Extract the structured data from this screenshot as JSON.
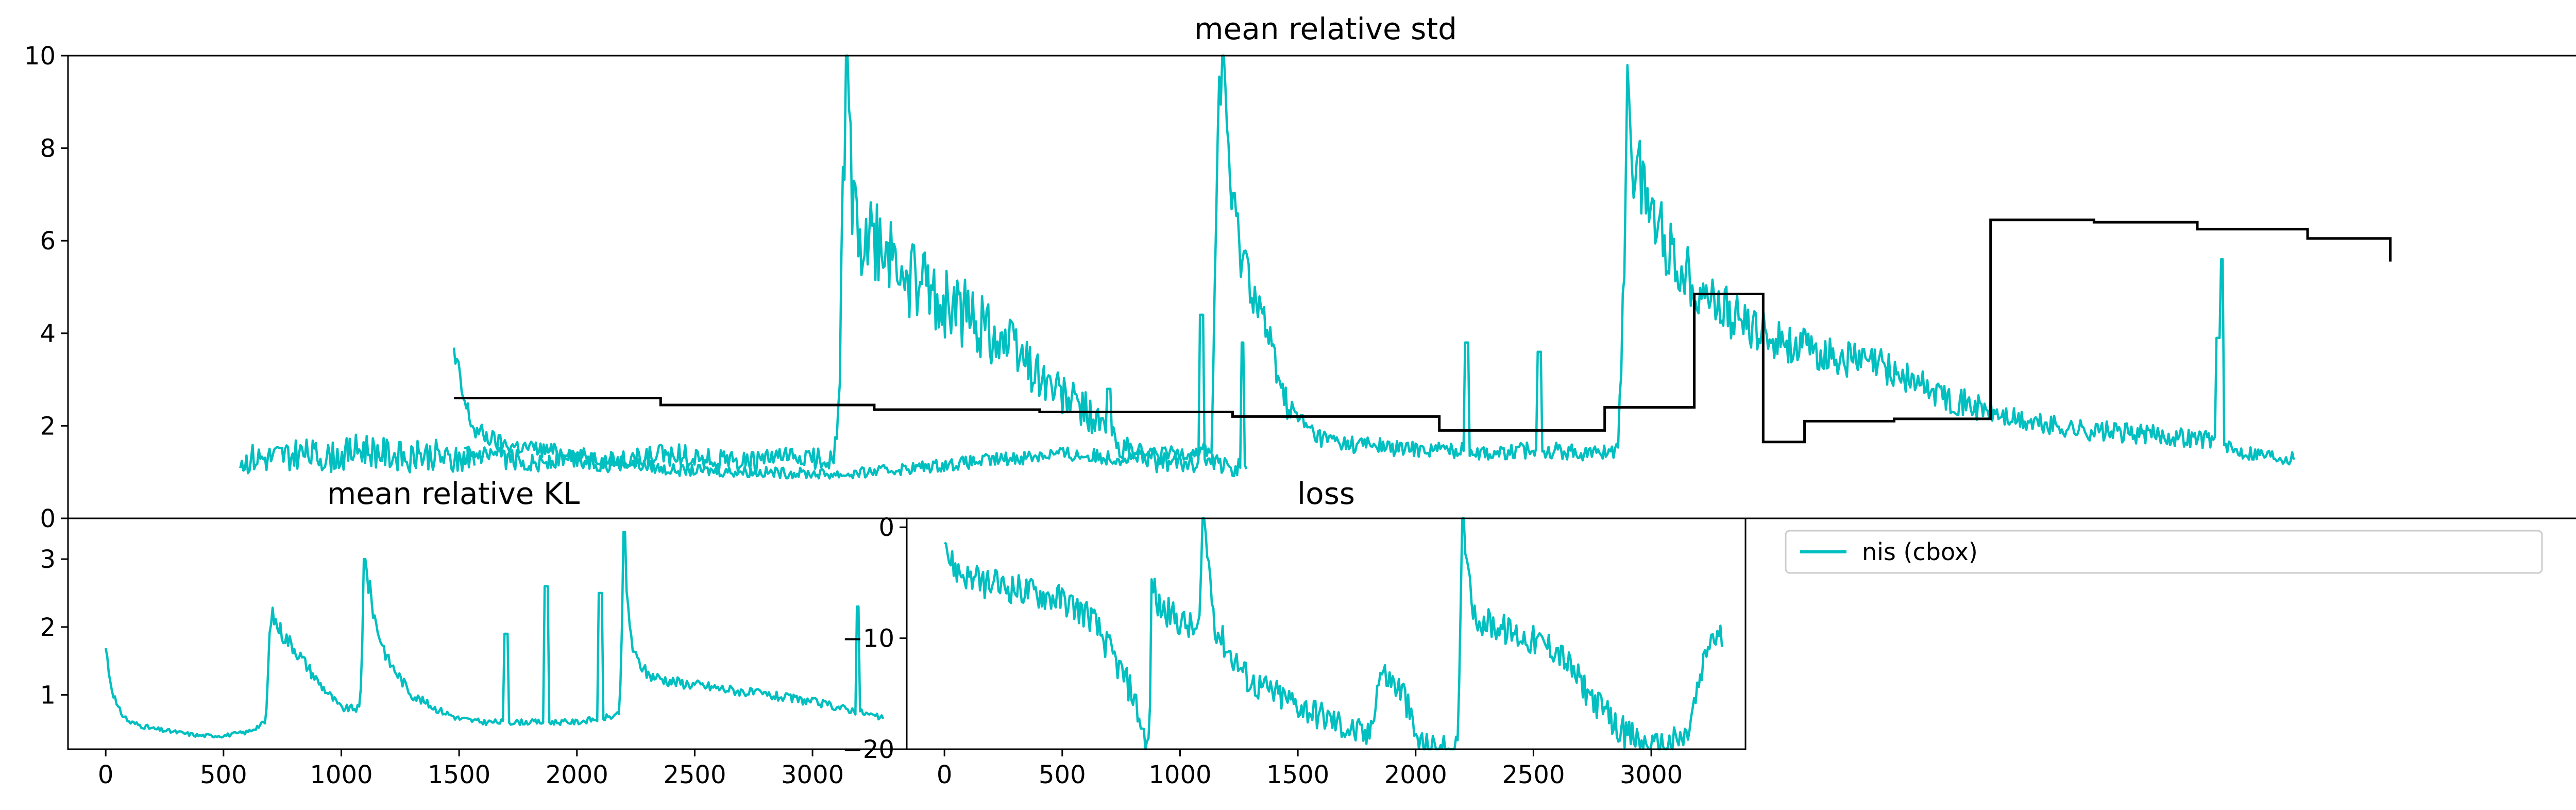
{
  "figure": {
    "background": "#ffffff"
  },
  "colors": {
    "series_nis": "#00bfc0",
    "reference": "#000000"
  },
  "chart_data": [
    {
      "id": "top",
      "type": "line",
      "title": "mean relative std",
      "xlim": [
        -230,
        3420
      ],
      "ylim": [
        0,
        10
      ],
      "yticks": [
        0,
        2,
        4,
        6,
        8,
        10
      ],
      "ytick_labels": [
        "0",
        "2",
        "4",
        "6",
        "8",
        "10"
      ],
      "xticks": [],
      "grid": false,
      "series": [
        {
          "key": "nis",
          "color": "#00bfc0",
          "style": "noisy",
          "noise": 0.12,
          "spikes": [
            [
              1800,
              3.8
            ],
            [
              1905,
              3.6
            ],
            [
              2050,
              4.1
            ],
            [
              2195,
              3.6
            ],
            [
              2260,
              3.7
            ],
            [
              2890,
              3.9
            ],
            [
              2895,
              5.6
            ]
          ],
          "x": [
            330,
            335,
            345,
            360,
            400,
            500,
            640,
            900,
            1140,
            1200,
            1300,
            1430,
            1440,
            1445,
            1452,
            1458,
            1465,
            1480,
            1520,
            1540,
            1560,
            1580,
            1600,
            1630,
            1660,
            1700,
            1760,
            1850,
            1900,
            1980,
            2020,
            2030,
            2034,
            2040,
            2060,
            2100,
            2150,
            2200,
            2250,
            2300,
            2400,
            2500,
            2600,
            2700,
            2800,
            2890,
            2900,
            2950,
            3000
          ],
          "y": [
            3.5,
            3.2,
            2.5,
            1.9,
            1.6,
            1.4,
            1.05,
            0.95,
            1.3,
            1.4,
            1.3,
            1.5,
            9.5,
            10,
            8.5,
            7.0,
            6.2,
            5.5,
            3.5,
            2.4,
            2.1,
            1.8,
            1.7,
            1.6,
            1.6,
            1.5,
            1.5,
            1.4,
            1.5,
            1.4,
            1.5,
            6.5,
            10,
            7.8,
            7.0,
            5.6,
            4.8,
            4.2,
            3.9,
            3.6,
            3.3,
            2.6,
            2.1,
            1.9,
            1.8,
            1.7,
            1.5,
            1.4,
            1.3
          ]
        },
        {
          "key": "nis_b",
          "color": "#00bfc0",
          "style": "noisy",
          "noise": 0.18,
          "spikes": [
            [
              745,
              1.1
            ],
            [
              900,
              1.5
            ],
            [
              1065,
              3.2
            ],
            [
              1095,
              2.9
            ],
            [
              1120,
              2.4
            ],
            [
              1280,
              2.8
            ],
            [
              1415,
              4.4
            ],
            [
              1475,
              3.8
            ]
          ],
          "x": [
            345,
            350,
            355,
            360,
            365,
            380,
            400,
            420,
            450,
            500,
            550,
            600,
            650,
            700,
            750,
            800,
            850,
            880,
            890,
            895,
            900,
            905,
            910,
            920,
            940,
            970,
            1000,
            1050,
            1100,
            1150,
            1200,
            1250,
            1300,
            1330,
            1340,
            1350,
            1360,
            1380,
            1420,
            1460,
            1480
          ],
          "y": [
            1.3,
            1.3,
            1.3,
            1.3,
            1.3,
            1.3,
            1.3,
            1.25,
            1.2,
            1.3,
            1.2,
            1.3,
            1.4,
            1.3,
            1.2,
            1.3,
            1.3,
            1.3,
            2.5,
            8.0,
            10,
            8.0,
            6.5,
            6.0,
            5.8,
            5.5,
            5.0,
            4.6,
            4.2,
            3.6,
            2.8,
            2.3,
            1.5,
            1.4,
            1.3,
            1.2,
            1.2,
            1.2,
            1.2,
            1.1,
            1.2
          ]
        },
        {
          "key": "nis_c",
          "color": "#00bfc0",
          "style": "noisy",
          "noise": 0.25,
          "spikes": [
            [
              1165,
              4.7
            ],
            [
              1255,
              5.3
            ],
            [
              1412,
              4.1
            ]
          ],
          "x": [
            20,
            25,
            35,
            60,
            100,
            150,
            200,
            260,
            300,
            330,
            360
          ],
          "y": [
            1.3,
            1.2,
            1.3,
            1.3,
            1.4,
            1.3,
            1.5,
            1.3,
            1.4,
            1.2,
            1.4
          ]
        },
        {
          "key": "ref",
          "color": "#000000",
          "style": "step",
          "x": [
            330,
            630,
            940,
            1180,
            1460,
            1760,
            2000,
            2130,
            2230,
            2290,
            2420,
            2560,
            2710,
            2860,
            3020,
            3140
          ],
          "y": [
            2.6,
            2.45,
            2.35,
            2.3,
            2.2,
            1.9,
            2.4,
            4.85,
            1.65,
            2.1,
            2.15,
            6.45,
            6.4,
            6.25,
            6.05,
            5.55
          ]
        }
      ]
    },
    {
      "id": "kl",
      "type": "line",
      "title": "mean relative KL",
      "xlim": [
        -160,
        3400
      ],
      "ylim": [
        0.2,
        3.6
      ],
      "yticks": [
        1,
        2,
        3
      ],
      "ytick_labels": [
        "1",
        "2",
        "3"
      ],
      "xticks": [
        0,
        500,
        1000,
        1500,
        2000,
        2500,
        3000
      ],
      "xtick_labels": [
        "0",
        "500",
        "1000",
        "1500",
        "2000",
        "2500",
        "3000"
      ],
      "grid": false,
      "series": [
        {
          "key": "nis",
          "color": "#00bfc0",
          "style": "noisy",
          "noise": 0.07,
          "spikes": [
            [
              1100,
              3.0
            ],
            [
              1700,
              1.9
            ],
            [
              1870,
              2.6
            ],
            [
              2100,
              2.5
            ],
            [
              2200,
              3.4
            ],
            [
              3190,
              2.3
            ]
          ],
          "x": [
            0,
            20,
            50,
            100,
            200,
            300,
            400,
            500,
            600,
            680,
            700,
            750,
            800,
            900,
            1000,
            1080,
            1100,
            1150,
            1200,
            1300,
            1400,
            1500,
            1600,
            1800,
            2000,
            2180,
            2200,
            2240,
            2300,
            2400,
            2600,
            2800,
            3000,
            3200,
            3300
          ],
          "y": [
            1.7,
            1.2,
            0.8,
            0.6,
            0.5,
            0.45,
            0.4,
            0.4,
            0.45,
            0.6,
            2.2,
            1.9,
            1.7,
            1.2,
            0.8,
            0.8,
            2.9,
            2.0,
            1.5,
            1.0,
            0.8,
            0.65,
            0.6,
            0.6,
            0.6,
            0.7,
            2.8,
            1.6,
            1.3,
            1.2,
            1.1,
            1.0,
            0.9,
            0.75,
            0.65
          ]
        }
      ]
    },
    {
      "id": "loss",
      "type": "line",
      "title": "loss",
      "xlim": [
        -160,
        3400
      ],
      "ylim": [
        -20,
        0.8
      ],
      "yticks": [
        -20,
        -10,
        0
      ],
      "ytick_labels": [
        "−20",
        "−10",
        "0"
      ],
      "xticks": [
        0,
        500,
        1000,
        1500,
        2000,
        2500,
        3000
      ],
      "xtick_labels": [
        "0",
        "500",
        "1000",
        "1500",
        "2000",
        "2500",
        "3000"
      ],
      "grid": false,
      "series": [
        {
          "key": "nis",
          "color": "#00bfc0",
          "style": "band",
          "noise": 1.4,
          "spikes": [
            [
              1100,
              1.0
            ],
            [
              2200,
              1.0
            ]
          ],
          "x": [
            0,
            20,
            60,
            150,
            300,
            500,
            620,
            700,
            800,
            850,
            870,
            880,
            900,
            1000,
            1080,
            1100,
            1150,
            1200,
            1300,
            1500,
            1700,
            1800,
            1850,
            1950,
            2000,
            2050,
            2150,
            2180,
            2200,
            2250,
            2400,
            2600,
            2700,
            2850,
            3000,
            3150,
            3250,
            3300
          ],
          "y": [
            0,
            -3,
            -4,
            -5,
            -5.5,
            -6.5,
            -8,
            -11,
            -15,
            -19,
            -20,
            -4,
            -7,
            -8.5,
            -9.5,
            0.8,
            -9,
            -11,
            -14,
            -16,
            -18,
            -19,
            -13,
            -15,
            -19,
            -20,
            -20,
            -20,
            0.8,
            -8,
            -9.5,
            -11,
            -14,
            -18,
            -20,
            -19,
            -10,
            -10
          ]
        }
      ]
    }
  ],
  "legend": {
    "entries": [
      {
        "label": "nis (cbox)",
        "color": "#00bfc0"
      }
    ],
    "placement": "upper-left"
  }
}
